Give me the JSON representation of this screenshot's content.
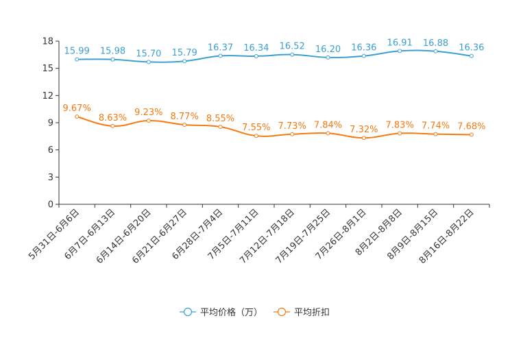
{
  "chart_data": {
    "type": "line",
    "title": "",
    "xlabel": "",
    "ylabel": "",
    "ylim": [
      0,
      18
    ],
    "yticks": [
      "0",
      "3",
      "6",
      "9",
      "12",
      "15",
      "18"
    ],
    "categories": [
      "5月31日-6月6日",
      "6月7日-6月13日",
      "6月14日-6月20日",
      "6月21日-6月27日",
      "6月28日-7月4日",
      "7月5日-7月11日",
      "7月12日-7月18日",
      "7月19日-7月25日",
      "7月26日-8月1日",
      "8月2日-8月8日",
      "8月9日-8月15日",
      "8月16日-8月22日"
    ],
    "series": [
      {
        "name": "平均价格（万）",
        "color": "#3a9fd5",
        "values": [
          15.99,
          15.98,
          15.7,
          15.79,
          16.37,
          16.34,
          16.52,
          16.2,
          16.36,
          16.91,
          16.88,
          16.36
        ],
        "labels": [
          "15.99",
          "15.98",
          "15.70",
          "15.79",
          "16.37",
          "16.34",
          "16.52",
          "16.20",
          "16.36",
          "16.91",
          "16.88",
          "16.36"
        ]
      },
      {
        "name": "平均折扣",
        "color": "#f47a10",
        "values": [
          9.67,
          8.63,
          9.23,
          8.77,
          8.55,
          7.55,
          7.73,
          7.84,
          7.32,
          7.83,
          7.74,
          7.68
        ],
        "labels": [
          "9.67%",
          "8.63%",
          "9.23%",
          "8.77%",
          "8.55%",
          "7.55%",
          "7.73%",
          "7.84%",
          "7.32%",
          "7.83%",
          "7.74%",
          "7.68%"
        ]
      }
    ],
    "legend_position": "bottom-center",
    "grid": false
  }
}
